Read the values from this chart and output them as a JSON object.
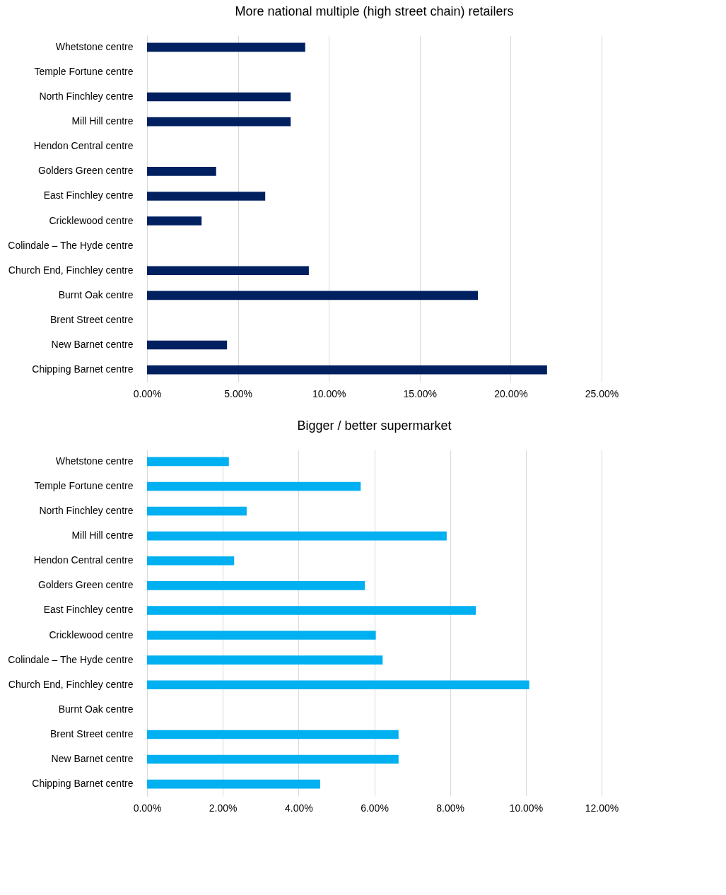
{
  "chart_data": [
    {
      "type": "bar",
      "orientation": "horizontal",
      "title": "More national multiple (high street chain) retailers",
      "categories": [
        "Whetstone centre",
        "Temple Fortune centre",
        "North Finchley centre",
        "Mill Hill centre",
        "Hendon Central centre",
        "Golders Green centre",
        "East Finchley centre",
        "Cricklewood centre",
        "Colindale – The Hyde centre",
        "Church End, Finchley centre",
        "Burnt Oak centre",
        "Brent Street centre",
        "New Barnet centre",
        "Chipping Barnet centre"
      ],
      "values": [
        8.7,
        0,
        7.9,
        7.9,
        0,
        3.8,
        6.5,
        3.0,
        0,
        8.9,
        18.2,
        0,
        4.4,
        22.0
      ],
      "color": "#002060",
      "xlim": [
        0,
        25
      ],
      "xticks": [
        {
          "value": 0,
          "label": "0.00%"
        },
        {
          "value": 5,
          "label": "5.00%"
        },
        {
          "value": 10,
          "label": "10.00%"
        },
        {
          "value": 15,
          "label": "15.00%"
        },
        {
          "value": 20,
          "label": "20.00%"
        },
        {
          "value": 25,
          "label": "25.00%"
        }
      ],
      "grid": "x"
    },
    {
      "type": "bar",
      "orientation": "horizontal",
      "title": "Bigger / better supermarket",
      "categories": [
        "Whetstone centre",
        "Temple Fortune centre",
        "North Finchley centre",
        "Mill Hill centre",
        "Hendon Central centre",
        "Golders Green centre",
        "East Finchley centre",
        "Cricklewood centre",
        "Colindale – The Hyde centre",
        "Church End, Finchley centre",
        "Burnt Oak centre",
        "Brent Street centre",
        "New Barnet centre",
        "Chipping Barnet centre"
      ],
      "values": [
        2.16,
        5.64,
        2.63,
        7.91,
        2.3,
        5.75,
        8.68,
        6.04,
        6.22,
        10.09,
        0,
        6.64,
        6.64,
        4.57
      ],
      "color": "#00b0f0",
      "xlim": [
        0,
        12
      ],
      "xticks": [
        {
          "value": 0,
          "label": "0.00%"
        },
        {
          "value": 2,
          "label": "2.00%"
        },
        {
          "value": 4,
          "label": "4.00%"
        },
        {
          "value": 6,
          "label": "6.00%"
        },
        {
          "value": 8,
          "label": "8.00%"
        },
        {
          "value": 10,
          "label": "10.00%"
        },
        {
          "value": 12,
          "label": "12.00%"
        }
      ],
      "grid": "x"
    }
  ]
}
